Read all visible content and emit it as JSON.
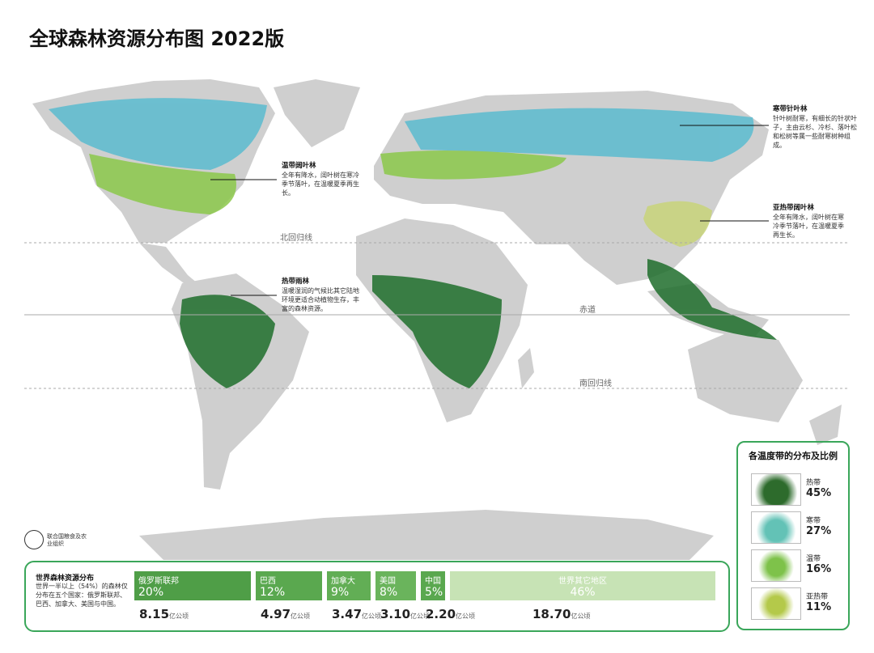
{
  "header": {
    "title": "全球森林资源分布图 2022版"
  },
  "annotations": [
    {
      "title": "寒带针叶林",
      "text": "针叶树耐寒，有细长的针状叶子，主由云杉、冷杉、落叶松和松树等属一些耐寒树种组成。"
    },
    {
      "title": "温带阔叶林",
      "text": "全年有降水，阔叶树在寒冷季节落叶，在温暖夏季再生长。"
    },
    {
      "title": "亚热带阔叶林",
      "text": "全年有降水，阔叶树在寒冷季节落叶，在温暖夏季再生长。"
    },
    {
      "title": "热带雨林",
      "text": "温暖湿润的气候比其它陆地环境更适合动植物生存，丰富的森林资源。"
    }
  ],
  "lines": [
    "北回归线",
    "赤道",
    "南回归线"
  ],
  "legend": {
    "title": "各温度带的分布及比例",
    "items": [
      {
        "name": "热带",
        "share": "45%"
      },
      {
        "name": "寒带",
        "share": "27%"
      },
      {
        "name": "温带",
        "share": "16%"
      },
      {
        "name": "亚热带",
        "share": "11%"
      }
    ]
  },
  "fao": "联合国粮食及农业组织",
  "distribution": {
    "title": "世界森林资源分布",
    "text": "世界一半以上（54%）的森林仅分布在五个国家：俄罗斯联邦、巴西、加拿大、美国与中国。",
    "unit": "亿公顷",
    "countries": [
      {
        "name": "俄罗斯联邦",
        "share": "20%",
        "area": "8.15"
      },
      {
        "name": "巴西",
        "share": "12%",
        "area": "4.97"
      },
      {
        "name": "加拿大",
        "share": "9%",
        "area": "3.47"
      },
      {
        "name": "美国",
        "share": "8%",
        "area": "3.10"
      },
      {
        "name": "中国",
        "share": "5%",
        "area": "2.20"
      },
      {
        "name": "世界其它地区",
        "share": "46%",
        "area": "18.70"
      }
    ]
  }
}
